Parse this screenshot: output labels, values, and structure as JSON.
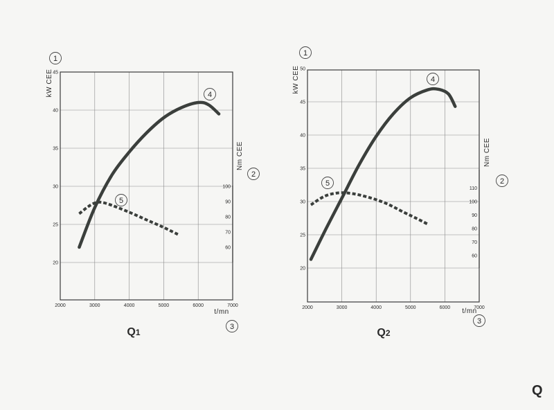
{
  "page": {
    "corner_mark": "Q"
  },
  "callouts": {
    "c1": "1",
    "c2": "2",
    "c3": "3",
    "c4": "4",
    "c5": "5"
  },
  "colors": {
    "curve": "#3b3f3c",
    "grid": "#8a8a8a",
    "background": "#f6f6f4"
  },
  "chart_data": [
    {
      "type": "line",
      "title": "Q",
      "title_sub": "1",
      "xlabel": "t/mn",
      "ylabel_left": "kW CEE",
      "ylabel_right": "Nm CEE",
      "xlim": [
        2000,
        7000
      ],
      "x_ticks": [
        2000,
        3000,
        4000,
        5000,
        6000,
        7000
      ],
      "ylim_left": [
        15,
        45
      ],
      "y_ticks_left": [
        20,
        25,
        30,
        35,
        40,
        45
      ],
      "y_ticks_right": [
        60,
        70,
        80,
        90,
        100
      ],
      "grid": true,
      "series": [
        {
          "style": "solid",
          "axis": "left",
          "points": [
            [
              2550,
              22
            ],
            [
              3000,
              27.2
            ],
            [
              3500,
              31.5
            ],
            [
              4000,
              34.5
            ],
            [
              4500,
              37
            ],
            [
              5000,
              39
            ],
            [
              5500,
              40.3
            ],
            [
              6000,
              41
            ],
            [
              6300,
              40.7
            ],
            [
              6600,
              39.5
            ]
          ]
        },
        {
          "style": "dashed",
          "axis": "left",
          "points": [
            [
              2550,
              26.4
            ],
            [
              2800,
              27.3
            ],
            [
              3000,
              27.8
            ],
            [
              3200,
              27.9
            ],
            [
              3500,
              27.5
            ],
            [
              4000,
              26.6
            ],
            [
              4500,
              25.6
            ],
            [
              5000,
              24.6
            ],
            [
              5450,
              23.6
            ]
          ]
        }
      ]
    },
    {
      "type": "line",
      "title": "Q",
      "title_sub": "2",
      "xlabel": "t/mn",
      "ylabel_left": "kW CEE",
      "ylabel_right": "Nm CEE",
      "xlim": [
        2000,
        7000
      ],
      "x_ticks": [
        2000,
        3000,
        4000,
        5000,
        6000,
        7000
      ],
      "ylim_left": [
        15,
        50
      ],
      "y_ticks_left": [
        20,
        25,
        30,
        35,
        40,
        45,
        50
      ],
      "y_ticks_right": [
        60,
        70,
        80,
        90,
        100,
        110
      ],
      "grid": true,
      "series": [
        {
          "style": "solid",
          "axis": "left",
          "points": [
            [
              2100,
              21.3
            ],
            [
              2500,
              25.5
            ],
            [
              3000,
              30.5
            ],
            [
              3500,
              35.5
            ],
            [
              4000,
              39.8
            ],
            [
              4500,
              43.2
            ],
            [
              5000,
              45.6
            ],
            [
              5500,
              46.8
            ],
            [
              5800,
              46.9
            ],
            [
              6100,
              46.2
            ],
            [
              6300,
              44.3
            ]
          ]
        },
        {
          "style": "dashed",
          "axis": "left",
          "points": [
            [
              2100,
              29.5
            ],
            [
              2500,
              30.8
            ],
            [
              2900,
              31.3
            ],
            [
              3300,
              31.2
            ],
            [
              3800,
              30.6
            ],
            [
              4300,
              29.7
            ],
            [
              4800,
              28.4
            ],
            [
              5200,
              27.4
            ],
            [
              5500,
              26.6
            ]
          ]
        }
      ]
    }
  ]
}
